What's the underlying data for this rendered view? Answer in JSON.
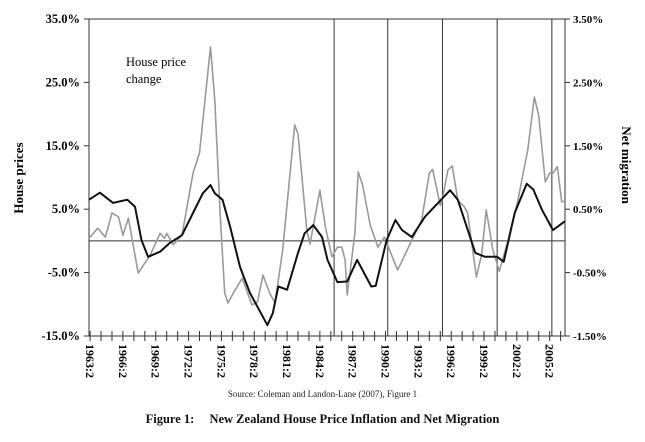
{
  "chart_data": {
    "type": "line",
    "title": "New Zealand House Price Inflation and Net Migration",
    "figure_label": "Figure 1:",
    "source": "Source: Coleman and Landon-Lane (2007), Figure 1",
    "annotation": [
      "House price",
      "change"
    ],
    "xlabel": "",
    "ylabel_left": "House prices",
    "ylabel_right": "Net migration",
    "xlim": [
      1963.1,
      2006.6
    ],
    "ylim_left": [
      -15,
      35
    ],
    "ylim_right": [
      -1.5,
      3.5
    ],
    "x_tick_labels": [
      "1963:2",
      "1966:2",
      "1969:2",
      "1972:2",
      "1975:2",
      "1978:2",
      "1981:2",
      "1984:2",
      "1987:2",
      "1990:2",
      "1993:2",
      "1996:2",
      "1999:2",
      "2002:2",
      "2005:2"
    ],
    "x_tick_label_values": [
      1963.2,
      1966.2,
      1969.2,
      1972.2,
      1975.2,
      1978.2,
      1981.2,
      1984.2,
      1987.2,
      1990.2,
      1993.2,
      1996.2,
      1999.2,
      2002.2,
      2005.2
    ],
    "y_left_ticks": [
      {
        "v": 35,
        "label": "35.0%"
      },
      {
        "v": 25,
        "label": "25.0%"
      },
      {
        "v": 15,
        "label": "15.0%"
      },
      {
        "v": 5,
        "label": "5.0%"
      },
      {
        "v": -5,
        "label": "-5.0%"
      },
      {
        "v": -15,
        "label": "-15.0%"
      }
    ],
    "y_right_ticks": [
      {
        "v": 3.5,
        "label": "3.50%"
      },
      {
        "v": 2.5,
        "label": "2.50%"
      },
      {
        "v": 1.5,
        "label": "1.50%"
      },
      {
        "v": 0.5,
        "label": "0.50%"
      },
      {
        "v": -0.5,
        "label": "-0.50%"
      },
      {
        "v": -1.5,
        "label": "-1.50%"
      }
    ],
    "vertical_markers": [
      1985.5,
      1990.4,
      1995.4,
      2000.4,
      2005.4
    ],
    "grid": false,
    "series": [
      {
        "name": "House price change",
        "axis": "left",
        "color": "#9a9a9a",
        "x": [
          1963.1,
          1963.9,
          1964.6,
          1965.2,
          1965.8,
          1966.2,
          1966.7,
          1967.6,
          1968.7,
          1969.6,
          1970.0,
          1970.2,
          1970.8,
          1971.6,
          1972.6,
          1973.2,
          1974.2,
          1974.6,
          1975.1,
          1975.5,
          1975.8,
          1976.3,
          1977.1,
          1978.0,
          1978.5,
          1979.0,
          1979.6,
          1980.1,
          1980.8,
          1981.9,
          1982.2,
          1983.0,
          1983.3,
          1984.2,
          1984.7,
          1985.3,
          1985.8,
          1986.2,
          1986.5,
          1986.7,
          1987.4,
          1987.7,
          1988.1,
          1988.8,
          1989.5,
          1990.1,
          1991.3,
          1992.6,
          1993.5,
          1994.2,
          1994.5,
          1995.2,
          1995.4,
          1995.9,
          1996.3,
          1996.8,
          1997.4,
          1997.7,
          1998.5,
          1999.0,
          1999.4,
          2000.0,
          2000.6,
          2001.4,
          2002.3,
          2003.2,
          2003.8,
          2004.2,
          2004.8,
          2005.2,
          2005.5,
          2005.9,
          2006.3,
          2006.6
        ],
        "y": [
          0.4,
          2.0,
          0.6,
          4.4,
          3.8,
          0.9,
          3.6,
          -5.1,
          -2.2,
          1.2,
          0.4,
          1.2,
          -0.6,
          0.9,
          10.7,
          13.9,
          30.6,
          22.2,
          3.8,
          -8.2,
          -9.8,
          -8.2,
          -5.9,
          -10.1,
          -9.6,
          -5.4,
          -8.2,
          -9.8,
          -1.4,
          18.3,
          16.9,
          1.7,
          -0.5,
          8.0,
          2.2,
          -2.5,
          -1.0,
          -1.0,
          -3.0,
          -8.5,
          1.2,
          10.9,
          8.8,
          2.5,
          -1.0,
          0.6,
          -4.6,
          0.1,
          3.3,
          10.7,
          11.3,
          5.6,
          6.6,
          11.2,
          11.8,
          6.4,
          5.4,
          4.4,
          -5.7,
          -2.0,
          4.9,
          -1.4,
          -4.8,
          0.1,
          6.4,
          14.4,
          22.7,
          19.8,
          9.3,
          10.7,
          10.7,
          11.7,
          6.2,
          6.2
        ]
      },
      {
        "name": "Net migration",
        "axis": "right",
        "color": "#111111",
        "x": [
          1963.1,
          1964.1,
          1965.3,
          1966.6,
          1967.3,
          1967.9,
          1968.5,
          1969.6,
          1970.5,
          1971.6,
          1972.6,
          1973.5,
          1974.2,
          1974.6,
          1975.3,
          1976.0,
          1976.9,
          1977.8,
          1978.5,
          1979.4,
          1979.9,
          1980.4,
          1981.2,
          1982.2,
          1982.8,
          1983.6,
          1984.4,
          1984.9,
          1985.8,
          1986.7,
          1987.6,
          1988.9,
          1989.3,
          1990.3,
          1991.1,
          1991.7,
          1992.6,
          1993.8,
          1995.0,
          1996.1,
          1996.8,
          1998.4,
          1999.3,
          2000.4,
          2001.0,
          2002.0,
          2003.1,
          2003.7,
          2004.5,
          2005.5,
          2006.6
        ],
        "y": [
          0.65,
          0.76,
          0.6,
          0.65,
          0.54,
          0.01,
          -0.25,
          -0.17,
          -0.03,
          0.09,
          0.44,
          0.75,
          0.88,
          0.75,
          0.65,
          0.22,
          -0.41,
          -0.82,
          -1.04,
          -1.33,
          -1.14,
          -0.72,
          -0.77,
          -0.19,
          0.12,
          0.25,
          0.06,
          -0.3,
          -0.65,
          -0.64,
          -0.3,
          -0.72,
          -0.71,
          0.01,
          0.33,
          0.17,
          0.06,
          0.38,
          0.6,
          0.8,
          0.65,
          -0.19,
          -0.25,
          -0.25,
          -0.33,
          0.44,
          0.9,
          0.81,
          0.49,
          0.17,
          0.31
        ]
      }
    ]
  }
}
